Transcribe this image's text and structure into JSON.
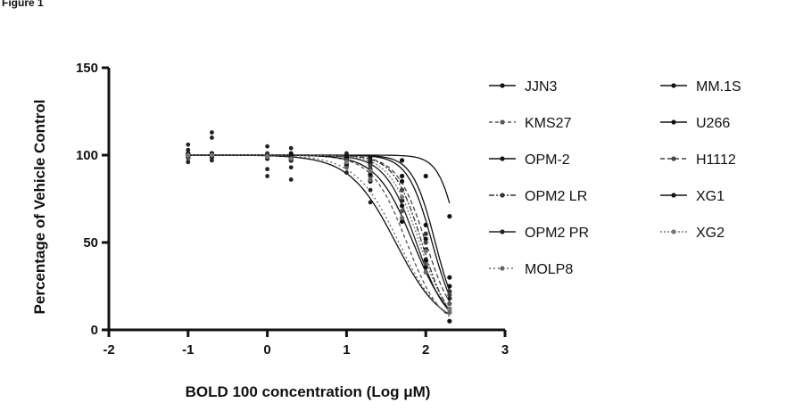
{
  "figure_label": "Figure 1",
  "chart_data": {
    "type": "scatter",
    "xlabel": "BOLD 100 concentration (Log μM)",
    "ylabel": "Percentage of Vehicle Control",
    "xlim": [
      -2,
      3
    ],
    "ylim": [
      0,
      150
    ],
    "xticks": [
      "-2",
      "-1",
      "0",
      "1",
      "2",
      "3"
    ],
    "yticks": [
      "0",
      "50",
      "100",
      "150"
    ],
    "x_dose_levels": [
      -1,
      -0.7,
      0,
      0.3,
      1,
      1.3,
      1.7,
      2,
      2.3
    ],
    "curve_form": "four-parameter logistic fit per series (top = 100, bottom = 0)",
    "grid": false,
    "legend_position": "right",
    "series": [
      {
        "name": "JJN3",
        "log_ic50": 1.62,
        "hill": 1.5,
        "values": [
          101,
          100,
          99,
          98,
          94,
          85,
          62,
          36,
          12
        ]
      },
      {
        "name": "KMS27",
        "log_ic50": 1.76,
        "hill": 2.0,
        "values": [
          99,
          100,
          100,
          98,
          95,
          88,
          68,
          38,
          15
        ]
      },
      {
        "name": "OPM-2",
        "log_ic50": 2.12,
        "hill": 3.0,
        "values": [
          100,
          101,
          99,
          100,
          99,
          97,
          88,
          60,
          30
        ]
      },
      {
        "name": "OPM2 LR",
        "log_ic50": 1.95,
        "hill": 2.5,
        "values": [
          100,
          99,
          101,
          99,
          98,
          95,
          80,
          55,
          22
        ]
      },
      {
        "name": "OPM2 PR",
        "log_ic50": 1.88,
        "hill": 2.2,
        "values": [
          101,
          100,
          100,
          98,
          97,
          92,
          74,
          46,
          18
        ]
      },
      {
        "name": "MOLP8",
        "log_ic50": 1.66,
        "hill": 1.6,
        "values": [
          98,
          100,
          99,
          97,
          93,
          86,
          64,
          33,
          10
        ]
      },
      {
        "name": "MM.1S",
        "log_ic50": 2.08,
        "hill": 2.8,
        "values": [
          100,
          101,
          100,
          99,
          98,
          96,
          85,
          52,
          25
        ]
      },
      {
        "name": "U266",
        "log_ic50": 2.42,
        "hill": 3.5,
        "values": [
          101,
          100,
          100,
          101,
          100,
          99,
          97,
          88,
          65
        ]
      },
      {
        "name": "H1112",
        "log_ic50": 2.0,
        "hill": 2.4,
        "values": [
          99,
          100,
          100,
          98,
          97,
          94,
          80,
          50,
          20
        ]
      },
      {
        "name": "XG1",
        "log_ic50": 1.84,
        "hill": 1.9,
        "values": [
          100,
          99,
          98,
          97,
          95,
          89,
          71,
          40,
          5
        ]
      },
      {
        "name": "XG2",
        "log_ic50": 1.92,
        "hill": 2.3,
        "values": [
          100,
          100,
          99,
          98,
          96,
          91,
          76,
          45,
          12
        ]
      }
    ],
    "scatter_extras": [
      {
        "x": -1,
        "y": 106
      },
      {
        "x": -1,
        "y": 103
      },
      {
        "x": -1,
        "y": 96
      },
      {
        "x": -0.7,
        "y": 113
      },
      {
        "x": -0.7,
        "y": 110
      },
      {
        "x": -0.7,
        "y": 97
      },
      {
        "x": 0,
        "y": 105
      },
      {
        "x": 0,
        "y": 92
      },
      {
        "x": 0,
        "y": 88
      },
      {
        "x": 0.3,
        "y": 104
      },
      {
        "x": 0.3,
        "y": 93
      },
      {
        "x": 0.3,
        "y": 86
      },
      {
        "x": 1,
        "y": 101
      },
      {
        "x": 1,
        "y": 90
      },
      {
        "x": 1.3,
        "y": 97
      },
      {
        "x": 1.3,
        "y": 80
      },
      {
        "x": 1.3,
        "y": 73
      }
    ]
  }
}
